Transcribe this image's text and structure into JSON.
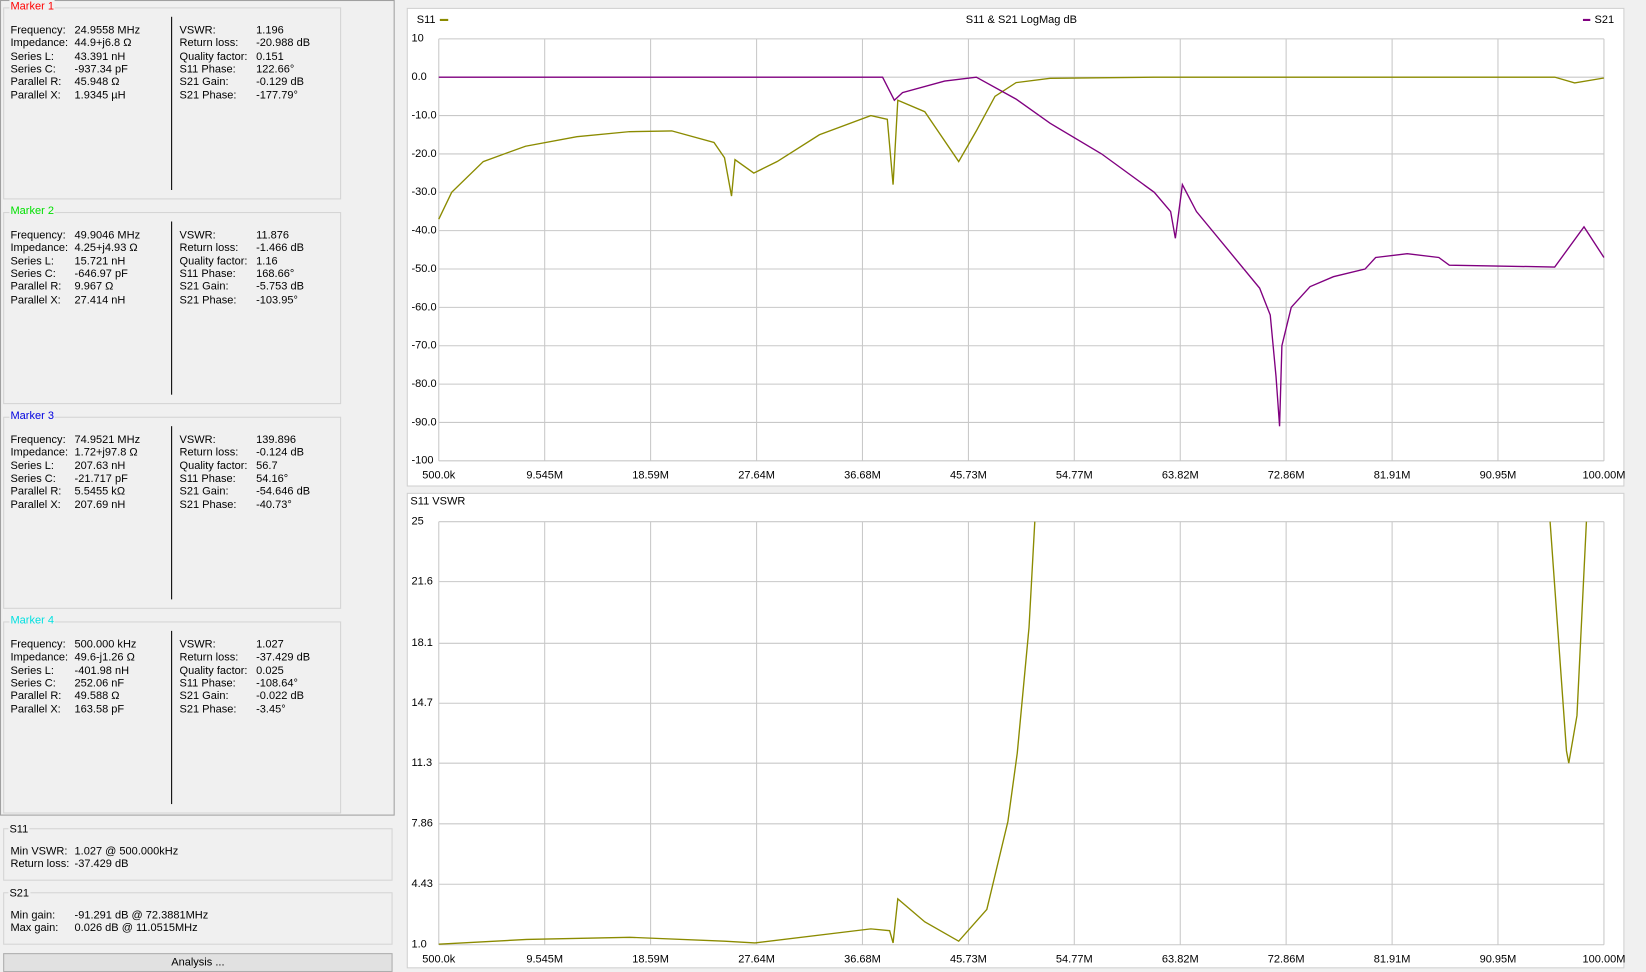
{
  "markers": [
    {
      "title": "Marker 1",
      "color": "#ff0000",
      "left": [
        [
          "Frequency:",
          "24.9558 MHz"
        ],
        [
          "Impedance:",
          "44.9+j6.8 Ω"
        ],
        [
          "Series L:",
          "43.391 nH"
        ],
        [
          "Series C:",
          "-937.34 pF"
        ],
        [
          "Parallel R:",
          "45.948 Ω"
        ],
        [
          "Parallel X:",
          "1.9345 µH"
        ]
      ],
      "right": [
        [
          "VSWR:",
          "1.196"
        ],
        [
          "Return loss:",
          "-20.988 dB"
        ],
        [
          "Quality factor:",
          "0.151"
        ],
        [
          "S11 Phase:",
          "122.66°"
        ],
        [
          "S21 Gain:",
          "-0.129 dB"
        ],
        [
          "S21 Phase:",
          "-177.79°"
        ]
      ]
    },
    {
      "title": "Marker 2",
      "color": "#00e000",
      "left": [
        [
          "Frequency:",
          "49.9046 MHz"
        ],
        [
          "Impedance:",
          "4.25+j4.93 Ω"
        ],
        [
          "Series L:",
          "15.721 nH"
        ],
        [
          "Series C:",
          "-646.97 pF"
        ],
        [
          "Parallel R:",
          "9.967 Ω"
        ],
        [
          "Parallel X:",
          "27.414 nH"
        ]
      ],
      "right": [
        [
          "VSWR:",
          "11.876"
        ],
        [
          "Return loss:",
          "-1.466 dB"
        ],
        [
          "Quality factor:",
          "1.16"
        ],
        [
          "S11 Phase:",
          "168.66°"
        ],
        [
          "S21 Gain:",
          "-5.753 dB"
        ],
        [
          "S21 Phase:",
          "-103.95°"
        ]
      ]
    },
    {
      "title": "Marker 3",
      "color": "#0000e0",
      "left": [
        [
          "Frequency:",
          "74.9521 MHz"
        ],
        [
          "Impedance:",
          "1.72+j97.8 Ω"
        ],
        [
          "Series L:",
          "207.63 nH"
        ],
        [
          "Series C:",
          "-21.717 pF"
        ],
        [
          "Parallel R:",
          "5.5455 kΩ"
        ],
        [
          "Parallel X:",
          "207.69 nH"
        ]
      ],
      "right": [
        [
          "VSWR:",
          "139.896"
        ],
        [
          "Return loss:",
          "-0.124 dB"
        ],
        [
          "Quality factor:",
          "56.7"
        ],
        [
          "S11 Phase:",
          "54.16°"
        ],
        [
          "S21 Gain:",
          "-54.646 dB"
        ],
        [
          "S21 Phase:",
          "-40.73°"
        ]
      ]
    },
    {
      "title": "Marker 4",
      "color": "#00e0e0",
      "left": [
        [
          "Frequency:",
          "500.000 kHz"
        ],
        [
          "Impedance:",
          "49.6-j1.26 Ω"
        ],
        [
          "Series L:",
          "-401.98 nH"
        ],
        [
          "Series C:",
          "252.06 nF"
        ],
        [
          "Parallel R:",
          "49.588 Ω"
        ],
        [
          "Parallel X:",
          "163.58 pF"
        ]
      ],
      "right": [
        [
          "VSWR:",
          "1.027"
        ],
        [
          "Return loss:",
          "-37.429 dB"
        ],
        [
          "Quality factor:",
          "0.025"
        ],
        [
          "S11 Phase:",
          "-108.64°"
        ],
        [
          "S21 Gain:",
          "-0.022 dB"
        ],
        [
          "S21 Phase:",
          "-3.45°"
        ]
      ]
    }
  ],
  "summary": [
    {
      "title": "S11",
      "rows": [
        [
          "Min VSWR:",
          "1.027 @ 500.000kHz"
        ],
        [
          "Return loss:",
          "-37.429 dB"
        ]
      ]
    },
    {
      "title": "S21",
      "rows": [
        [
          "Min gain:",
          "-91.291 dB @ 72.3881MHz"
        ],
        [
          "Max gain:",
          "0.026 dB @ 11.0515MHz"
        ]
      ]
    }
  ],
  "button": "Analysis ...",
  "chart_data": [
    {
      "type": "line",
      "title": "S11 & S21 LogMag dB",
      "grid": true,
      "xlim": [
        0.5,
        100
      ],
      "xticks": [
        {
          "value": 0.5,
          "label": "500.0k"
        },
        {
          "value": 9.545,
          "label": "9.545M"
        },
        {
          "value": 18.59,
          "label": "18.59M"
        },
        {
          "value": 27.64,
          "label": "27.64M"
        },
        {
          "value": 36.68,
          "label": "36.68M"
        },
        {
          "value": 45.73,
          "label": "45.73M"
        },
        {
          "value": 54.77,
          "label": "54.77M"
        },
        {
          "value": 63.82,
          "label": "63.82M"
        },
        {
          "value": 72.86,
          "label": "72.86M"
        },
        {
          "value": 81.91,
          "label": "81.91M"
        },
        {
          "value": 90.95,
          "label": "90.95M"
        },
        {
          "value": 100,
          "label": "100.00M"
        }
      ],
      "ylim": [
        -100,
        10
      ],
      "yticks": [
        10,
        {
          "value": 0,
          "label": "0.0"
        },
        {
          "value": -10,
          "label": "-10.0"
        },
        {
          "value": -20,
          "label": "-20.0"
        },
        {
          "value": -30,
          "label": "-30.0"
        },
        {
          "value": -40,
          "label": "-40.0"
        },
        {
          "value": -50,
          "label": "-50.0"
        },
        {
          "value": -60,
          "label": "-60.0"
        },
        {
          "value": -70,
          "label": "-70.0"
        },
        {
          "value": -80,
          "label": "-80.0"
        },
        {
          "value": -90,
          "label": "-90.0"
        },
        -100
      ],
      "series": [
        {
          "name": "S11",
          "color": "#8b8b00",
          "x": [
            0.5,
            1.6,
            4.3,
            7.9,
            12.3,
            16.8,
            20.4,
            24.0,
            24.9,
            25.5,
            25.8,
            27.4,
            29.4,
            33.0,
            37.4,
            38.8,
            39.3,
            39.7,
            42.0,
            44.9,
            46.4,
            48.0,
            49.8,
            52.7,
            61.6,
            95.8,
            97.5,
            100
          ],
          "values": [
            -37,
            -30,
            -22,
            -18,
            -15.5,
            -14.2,
            -14,
            -17,
            -21,
            -31,
            -21.5,
            -25,
            -22,
            -15,
            -10,
            -11,
            -28,
            -6,
            -9,
            -22,
            -14,
            -5,
            -1.4,
            -0.3,
            0,
            0,
            -1.5,
            -0.2
          ]
        },
        {
          "name": "S21",
          "color": "#800080",
          "x": [
            0.5,
            20,
            38.4,
            39.4,
            40.1,
            43.7,
            46.4,
            49.8,
            52.7,
            57.1,
            61.6,
            63.0,
            63.4,
            64.0,
            65.2,
            67.9,
            70.6,
            71.5,
            72.0,
            72.3,
            72.5,
            73.3,
            74.9,
            76.9,
            79.6,
            80.5,
            83.2,
            85.9,
            86.8,
            95.8,
            98.3,
            100
          ],
          "values": [
            0,
            0,
            0,
            -6,
            -4,
            -1,
            0,
            -5.7,
            -12,
            -20,
            -30,
            -35,
            -42,
            -28,
            -35,
            -45,
            -55,
            -62,
            -78,
            -91,
            -70,
            -60,
            -54.6,
            -52,
            -50,
            -47,
            -46,
            -47,
            -49,
            -49.5,
            -39,
            -47
          ]
        }
      ]
    },
    {
      "type": "line",
      "title": "S11 VSWR",
      "grid": true,
      "xlim": [
        0.5,
        100
      ],
      "xticks": [
        {
          "value": 0.5,
          "label": "500.0k"
        },
        {
          "value": 9.545,
          "label": "9.545M"
        },
        {
          "value": 18.59,
          "label": "18.59M"
        },
        {
          "value": 27.64,
          "label": "27.64M"
        },
        {
          "value": 36.68,
          "label": "36.68M"
        },
        {
          "value": 45.73,
          "label": "45.73M"
        },
        {
          "value": 54.77,
          "label": "54.77M"
        },
        {
          "value": 63.82,
          "label": "63.82M"
        },
        {
          "value": 72.86,
          "label": "72.86M"
        },
        {
          "value": 81.91,
          "label": "81.91M"
        },
        {
          "value": 90.95,
          "label": "90.95M"
        },
        {
          "value": 100,
          "label": "100.00M"
        }
      ],
      "ylim": [
        1,
        25
      ],
      "yticks": [
        {
          "value": 1,
          "label": "1.0"
        },
        4.43,
        7.86,
        11.3,
        14.7,
        18.1,
        21.6,
        25
      ],
      "series": [
        {
          "color": "#8b8b00",
          "x": [
            0.5,
            8,
            16.8,
            24.9,
            27.5,
            37.4,
            39.0,
            39.3,
            39.7,
            42.0,
            44.9,
            47.3,
            49.1,
            49.9,
            50.9,
            51.4,
            75,
            95.4,
            96.8,
            97.0,
            97.7,
            98.5
          ],
          "values": [
            1.03,
            1.3,
            1.42,
            1.2,
            1.1,
            1.9,
            1.8,
            1.1,
            3.6,
            2.3,
            1.2,
            3,
            8,
            11.876,
            19,
            25,
            null,
            25,
            12,
            11.3,
            14,
            25
          ]
        }
      ]
    }
  ]
}
